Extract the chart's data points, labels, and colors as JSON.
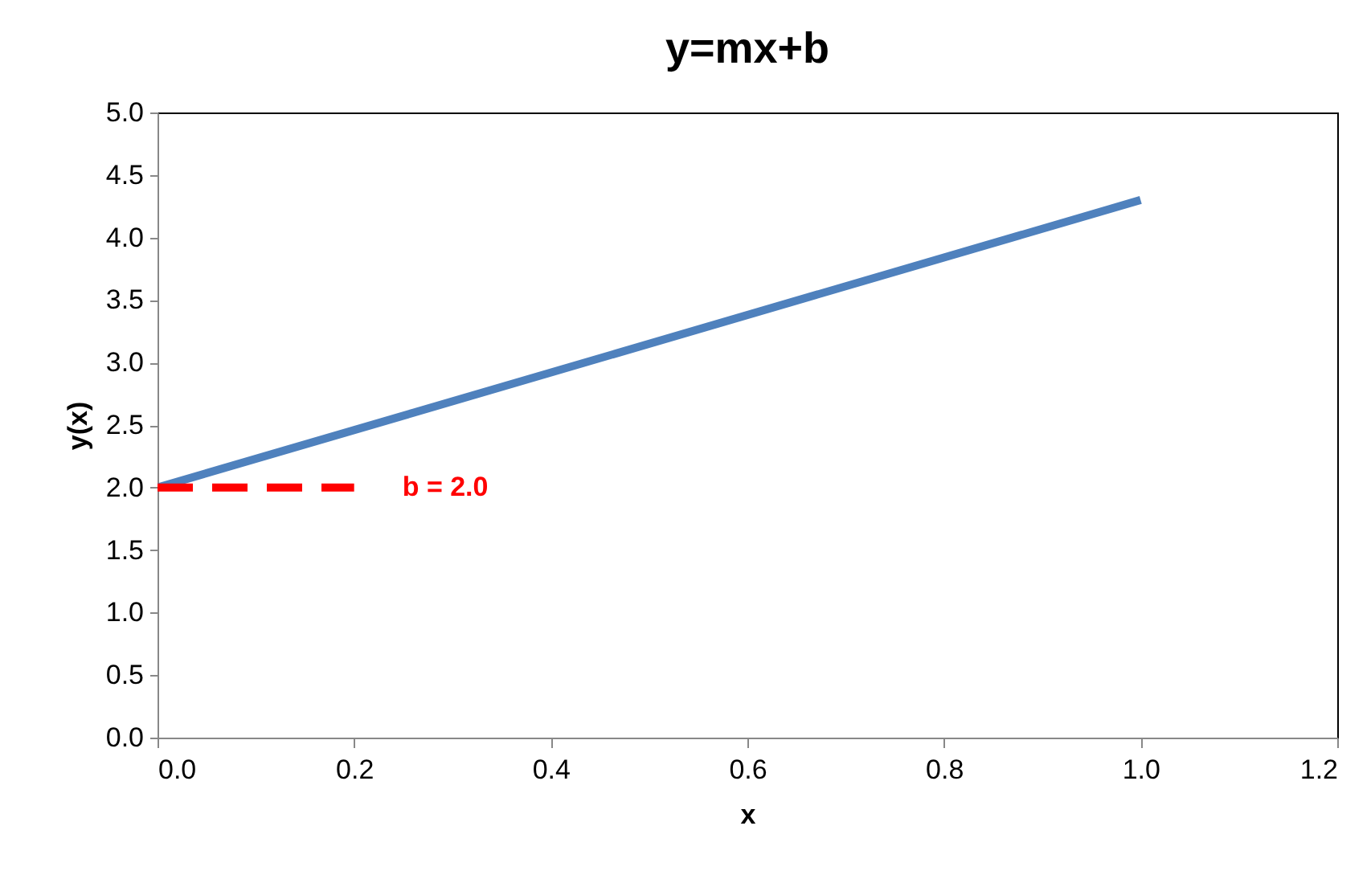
{
  "chart_data": {
    "type": "line",
    "title": "y=mx+b",
    "xlabel": "x",
    "ylabel": "y(x)",
    "series": [
      {
        "color": "#4f81bd",
        "x": [
          0.0,
          1.0
        ],
        "values": [
          2.0,
          4.3
        ],
        "line_style": "solid"
      },
      {
        "color": "#ff0000",
        "x": [
          0.0,
          0.2
        ],
        "values": [
          2.0,
          2.0
        ],
        "line_style": "dashed"
      }
    ],
    "annotations": [
      "b = 2.0"
    ],
    "xlim": [
      0.0,
      1.2
    ],
    "xticks": [
      {
        "value": 0,
        "label": "0.0"
      },
      0.2,
      0.4,
      0.6,
      0.8,
      {
        "value": 1,
        "label": "1.0"
      },
      1.2
    ],
    "ylim": [
      0.0,
      5.0
    ],
    "yticks": [
      {
        "value": 0,
        "label": "0.0"
      },
      0.5,
      {
        "value": 1,
        "label": "1.0"
      },
      1.5,
      {
        "value": 2,
        "label": "2.0"
      },
      2.5,
      {
        "value": 3,
        "label": "3.0"
      },
      3.5,
      {
        "value": 4,
        "label": "4.0"
      },
      4.5,
      {
        "value": 5,
        "label": "5.0"
      }
    ],
    "grid": false
  }
}
